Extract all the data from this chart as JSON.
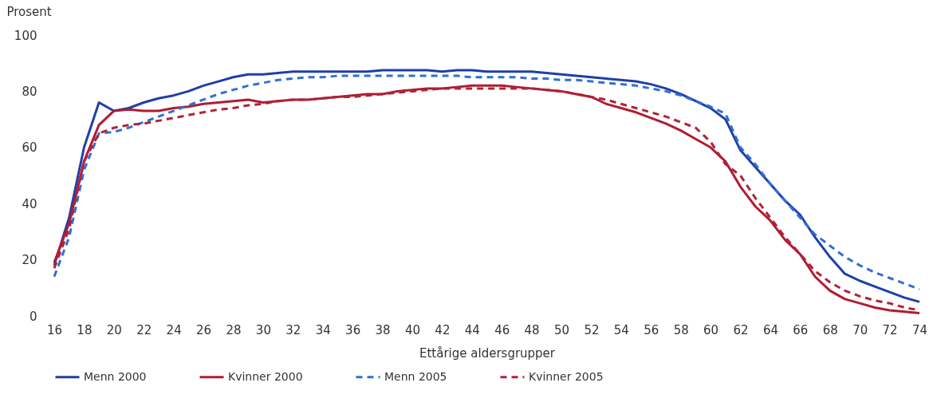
{
  "chart_data": {
    "type": "line",
    "xlabel": "Ettårige aldersgrupper",
    "ylabel": "Prosent",
    "x": [
      16,
      17,
      18,
      19,
      20,
      21,
      22,
      23,
      24,
      25,
      26,
      27,
      28,
      29,
      30,
      31,
      32,
      33,
      34,
      35,
      36,
      37,
      38,
      39,
      40,
      41,
      42,
      43,
      44,
      45,
      46,
      47,
      48,
      49,
      50,
      51,
      52,
      53,
      54,
      55,
      56,
      57,
      58,
      59,
      60,
      61,
      62,
      63,
      64,
      65,
      66,
      67,
      68,
      69,
      70,
      71,
      72,
      73,
      74
    ],
    "xlim": [
      16,
      74
    ],
    "xticks": [
      16,
      18,
      20,
      22,
      24,
      26,
      28,
      30,
      32,
      34,
      36,
      38,
      40,
      42,
      44,
      46,
      48,
      50,
      52,
      54,
      56,
      58,
      60,
      62,
      64,
      66,
      68,
      70,
      72,
      74
    ],
    "ylim": [
      0,
      100
    ],
    "yticks": [
      0,
      20,
      40,
      60,
      80,
      100
    ],
    "grid": false,
    "legend": "bottom",
    "marker": "none",
    "series": [
      {
        "name": "Menn 2000",
        "color": "#1f3fa8",
        "line_style": "solid",
        "values": [
          18,
          35,
          60,
          76,
          73,
          74,
          76,
          77.5,
          78.5,
          80,
          82,
          83.5,
          85,
          86,
          86,
          86.5,
          87,
          87,
          87,
          87,
          87,
          87,
          87.5,
          87.5,
          87.5,
          87.5,
          87,
          87.5,
          87.5,
          87,
          87,
          87,
          87,
          86.5,
          86,
          85.5,
          85,
          84.5,
          84,
          83.5,
          82.5,
          81,
          79,
          76.5,
          74,
          70,
          59,
          53,
          47,
          41,
          36,
          28,
          21,
          15,
          12.5,
          10.5,
          8.5,
          6.5,
          5
        ]
      },
      {
        "name": "Kvinner 2000",
        "color": "#b01c32",
        "line_style": "solid",
        "values": [
          19,
          33,
          55,
          68,
          73,
          73.5,
          73,
          73,
          74,
          74.5,
          75.5,
          76,
          76.5,
          77,
          76,
          76.5,
          77,
          77,
          77.5,
          78,
          78.5,
          79,
          79,
          80,
          80.5,
          81,
          81,
          81.5,
          82,
          82,
          82,
          81.5,
          81,
          80.5,
          80,
          79,
          78,
          75.5,
          74,
          72.5,
          70.5,
          68.5,
          66,
          63,
          60,
          55,
          46,
          39,
          34,
          27,
          22,
          14,
          9,
          6,
          4.5,
          3,
          2,
          1.5,
          1
        ]
      },
      {
        "name": "Menn 2005",
        "color": "#2f6fd6",
        "line_style": "dashed",
        "values": [
          14,
          28,
          52,
          65,
          65.5,
          67,
          69,
          71,
          73,
          75,
          77,
          79,
          80.5,
          82,
          83,
          84,
          84.5,
          85,
          85,
          85.5,
          85.5,
          85.5,
          85.5,
          85.5,
          85.5,
          85.5,
          85.5,
          85.5,
          85,
          85,
          85,
          85,
          84.5,
          84.5,
          84,
          84,
          83.5,
          83,
          82.5,
          82,
          81,
          80,
          78.5,
          76.5,
          74.5,
          72,
          60,
          54,
          47,
          41,
          35,
          29,
          25,
          21,
          18,
          15.5,
          13.5,
          11.5,
          9.5
        ]
      },
      {
        "name": "Kvinner 2005",
        "color": "#b0233a",
        "line_style": "dashed",
        "values": [
          17,
          31,
          55,
          65,
          67,
          68,
          68.5,
          69.5,
          70.5,
          71.5,
          72.5,
          73.5,
          74,
          75,
          75.5,
          76.5,
          77,
          77,
          77.5,
          78,
          78,
          78.5,
          79,
          79.5,
          80,
          80.5,
          81,
          81,
          81,
          81,
          81,
          81,
          81,
          80.5,
          80,
          79,
          78,
          77,
          75.5,
          74,
          72.5,
          71,
          69,
          67,
          62,
          54,
          50,
          42,
          35,
          28,
          22,
          16,
          12,
          9,
          7,
          5.5,
          4.5,
          3,
          2
        ]
      }
    ]
  }
}
